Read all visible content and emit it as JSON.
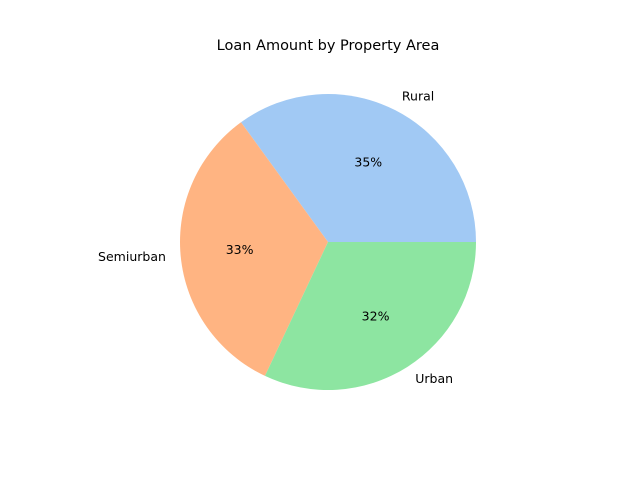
{
  "chart_data": {
    "type": "pie",
    "title": "Loan Amount by Property Area",
    "categories": [
      "Rural",
      "Semiurban",
      "Urban"
    ],
    "values": [
      35,
      33,
      32
    ],
    "value_labels": [
      "35%",
      "33%",
      "32%"
    ],
    "colors": [
      "#a1c9f4",
      "#ffb482",
      "#8de5a1"
    ],
    "start_angle_deg": 0,
    "direction": "counterclockwise",
    "legend": "none"
  }
}
